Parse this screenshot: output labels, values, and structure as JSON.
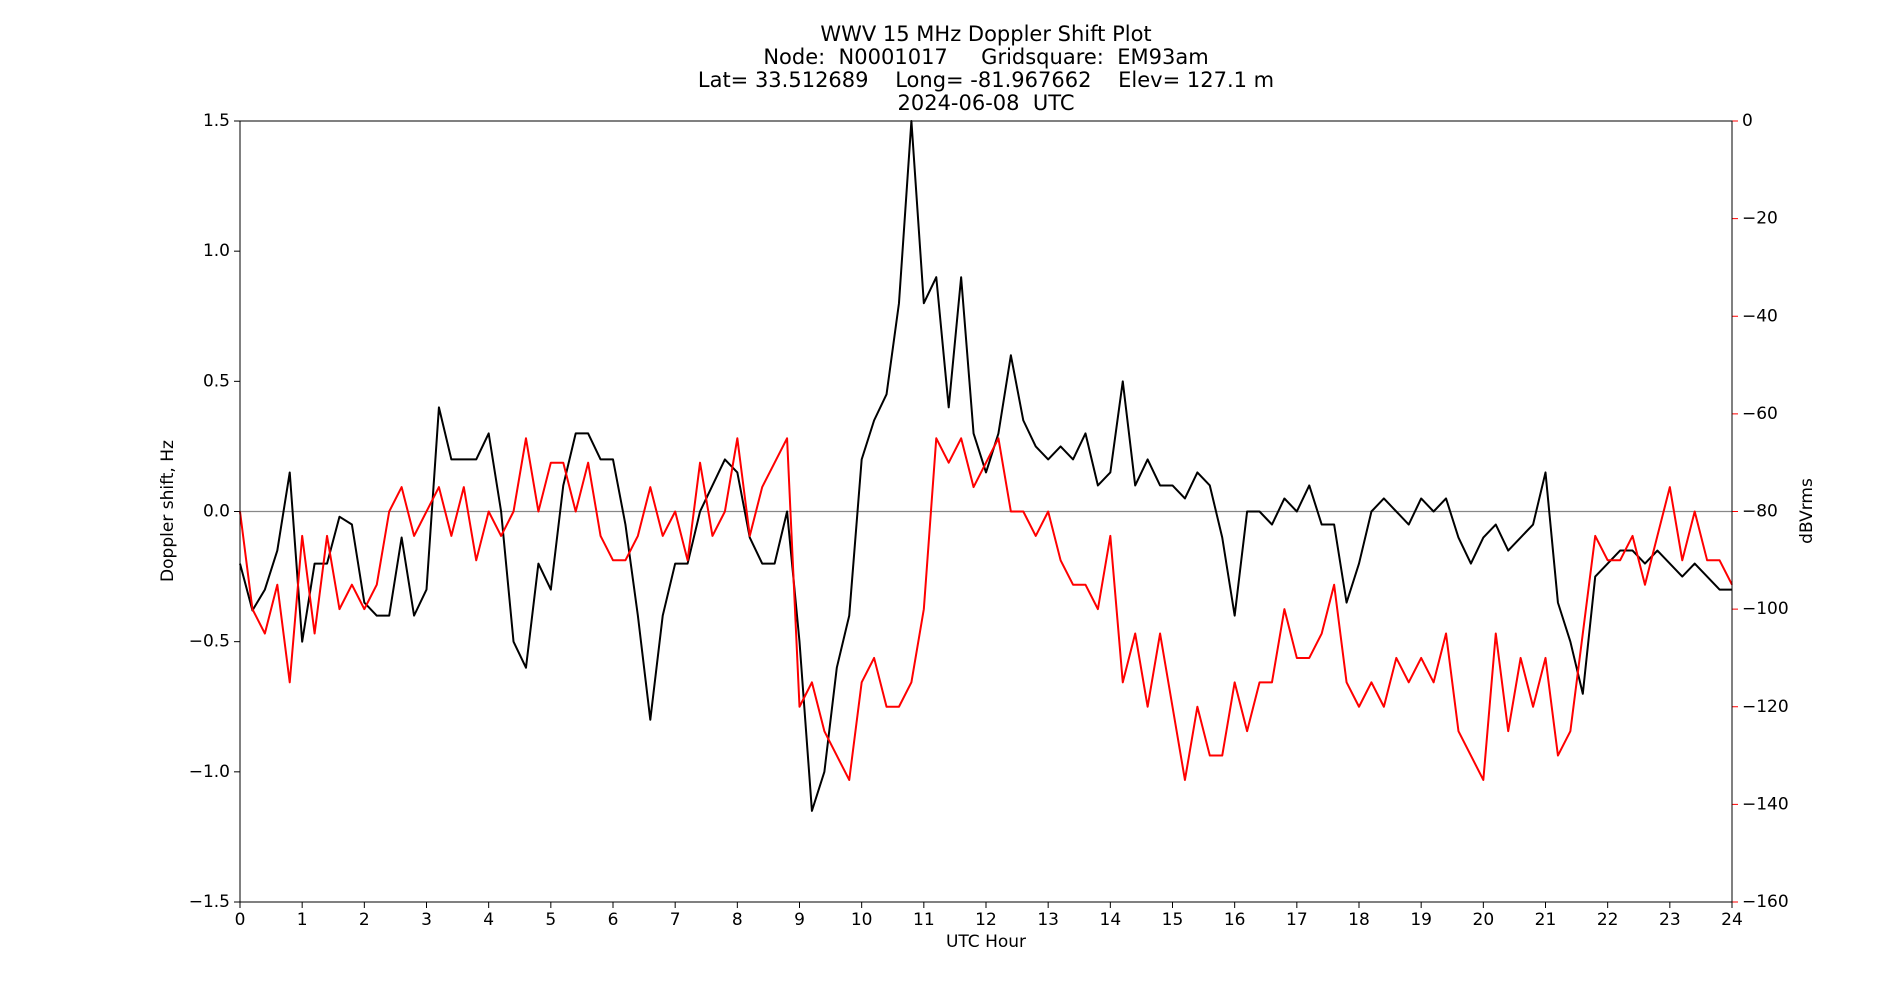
{
  "chart_data": {
    "type": "line",
    "title_lines": [
      "WWV 15 MHz Doppler Shift Plot",
      "Node:  N0001017     Gridsquare:  EM93am",
      "Lat= 33.512689    Long= -81.967662    Elev= 127.1 m",
      "2024-06-08  UTC"
    ],
    "x_label": "UTC Hour",
    "y_label": "Doppler shift, Hz",
    "y2_label": "dBVrms",
    "y2_color": "#ff0000",
    "zero_line": true,
    "xlim": [
      0,
      24
    ],
    "xticks": [
      0,
      1,
      2,
      3,
      4,
      5,
      6,
      7,
      8,
      9,
      10,
      11,
      12,
      13,
      14,
      15,
      16,
      17,
      18,
      19,
      20,
      21,
      22,
      23,
      24
    ],
    "ylim": [
      -1.5,
      1.5
    ],
    "yticks": [
      {
        "value": -1.5,
        "label": "−1.5"
      },
      {
        "value": -1,
        "label": "−1.0"
      },
      {
        "value": -0.5,
        "label": "−0.5"
      },
      {
        "value": 0,
        "label": "0.0"
      },
      {
        "value": 0.5,
        "label": "0.5"
      },
      {
        "value": 1,
        "label": "1.0"
      },
      {
        "value": 1.5,
        "label": "1.5"
      }
    ],
    "y2lim": [
      -160,
      0
    ],
    "y2ticks": [
      {
        "value": -160,
        "label": "−160"
      },
      {
        "value": -140,
        "label": "−140"
      },
      {
        "value": -120,
        "label": "−120"
      },
      {
        "value": -100,
        "label": "−100"
      },
      {
        "value": -80,
        "label": "−80"
      },
      {
        "value": -60,
        "label": "−60"
      },
      {
        "value": -40,
        "label": "−40"
      },
      {
        "value": -20,
        "label": "−20"
      },
      0
    ],
    "x": [
      0,
      0.2,
      0.4,
      0.6,
      0.8,
      1,
      1.2,
      1.4,
      1.6,
      1.8,
      2,
      2.2,
      2.4,
      2.6,
      2.8,
      3,
      3.2,
      3.4,
      3.6,
      3.8,
      4,
      4.2,
      4.4,
      4.6,
      4.8,
      5,
      5.2,
      5.4,
      5.6,
      5.8,
      6,
      6.2,
      6.4,
      6.6,
      6.8,
      7,
      7.2,
      7.4,
      7.6,
      7.8,
      8,
      8.2,
      8.4,
      8.6,
      8.8,
      9,
      9.2,
      9.4,
      9.6,
      9.8,
      10,
      10.2,
      10.4,
      10.6,
      10.8,
      11,
      11.2,
      11.4,
      11.6,
      11.8,
      12,
      12.2,
      12.4,
      12.6,
      12.8,
      13,
      13.2,
      13.4,
      13.6,
      13.8,
      14,
      14.2,
      14.4,
      14.6,
      14.8,
      15,
      15.2,
      15.4,
      15.6,
      15.8,
      16,
      16.2,
      16.4,
      16.6,
      16.8,
      17,
      17.2,
      17.4,
      17.6,
      17.8,
      18,
      18.2,
      18.4,
      18.6,
      18.8,
      19,
      19.2,
      19.4,
      19.6,
      19.8,
      20,
      20.2,
      20.4,
      20.6,
      20.8,
      21,
      21.2,
      21.4,
      21.6,
      21.8,
      22,
      22.2,
      22.4,
      22.6,
      22.8,
      23,
      23.2,
      23.4,
      23.6,
      23.8,
      24
    ],
    "series": [
      {
        "color": "#000000",
        "values": [
          -0.2,
          -0.38,
          -0.3,
          -0.15,
          0.15,
          -0.5,
          -0.2,
          -0.2,
          -0.02,
          -0.05,
          -0.35,
          -0.4,
          -0.4,
          -0.1,
          -0.4,
          -0.3,
          0.4,
          0.2,
          0.2,
          0.2,
          0.3,
          0,
          -0.5,
          -0.6,
          -0.2,
          -0.3,
          0.1,
          0.3,
          0.3,
          0.2,
          0.2,
          -0.05,
          -0.4,
          -0.8,
          -0.4,
          -0.2,
          -0.2,
          0,
          0.1,
          0.2,
          0.15,
          -0.1,
          -0.2,
          -0.2,
          0,
          -0.5,
          -1.15,
          -1,
          -0.6,
          -0.4,
          0.2,
          0.35,
          0.45,
          0.8,
          1.5,
          0.8,
          0.9,
          0.4,
          0.9,
          0.3,
          0.15,
          0.3,
          0.6,
          0.35,
          0.25,
          0.2,
          0.25,
          0.2,
          0.3,
          0.1,
          0.15,
          0.5,
          0.1,
          0.2,
          0.1,
          0.1,
          0.05,
          0.15,
          0.1,
          -0.1,
          -0.4,
          0,
          0,
          -0.05,
          0.05,
          0,
          0.1,
          -0.05,
          -0.05,
          -0.35,
          -0.2,
          0,
          0.05,
          0,
          -0.05,
          0.05,
          0,
          0.05,
          -0.1,
          -0.2,
          -0.1,
          -0.05,
          -0.15,
          -0.1,
          -0.05,
          0.15,
          -0.35,
          -0.5,
          -0.7,
          -0.25,
          -0.2,
          -0.15,
          -0.15,
          -0.2,
          -0.15,
          -0.2,
          -0.25,
          -0.2,
          -0.25,
          -0.3,
          -0.3
        ]
      },
      {
        "color": "#ff0000",
        "axis": "y2",
        "values": [
          -80,
          -100,
          -105,
          -95,
          -115,
          -85,
          -105,
          -85,
          -100,
          -95,
          -100,
          -95,
          -80,
          -75,
          -85,
          -80,
          -75,
          -85,
          -75,
          -90,
          -80,
          -85,
          -80,
          -65,
          -80,
          -70,
          -70,
          -80,
          -70,
          -85,
          -90,
          -90,
          -85,
          -75,
          -85,
          -80,
          -90,
          -70,
          -85,
          -80,
          -65,
          -85,
          -75,
          -70,
          -65,
          -120,
          -115,
          -125,
          -130,
          -135,
          -115,
          -110,
          -120,
          -120,
          -115,
          -100,
          -65,
          -70,
          -65,
          -75,
          -70,
          -65,
          -80,
          -80,
          -85,
          -80,
          -90,
          -95,
          -95,
          -100,
          -85,
          -115,
          -105,
          -120,
          -105,
          -120,
          -135,
          -120,
          -130,
          -130,
          -115,
          -125,
          -115,
          -115,
          -100,
          -110,
          -110,
          -105,
          -95,
          -115,
          -120,
          -115,
          -120,
          -110,
          -115,
          -110,
          -115,
          -105,
          -125,
          -130,
          -135,
          -105,
          -125,
          -110,
          -120,
          -110,
          -130,
          -125,
          -105,
          -85,
          -90,
          -90,
          -85,
          -95,
          -85,
          -75,
          -90,
          -80,
          -90,
          -90,
          -95
        ]
      }
    ]
  }
}
